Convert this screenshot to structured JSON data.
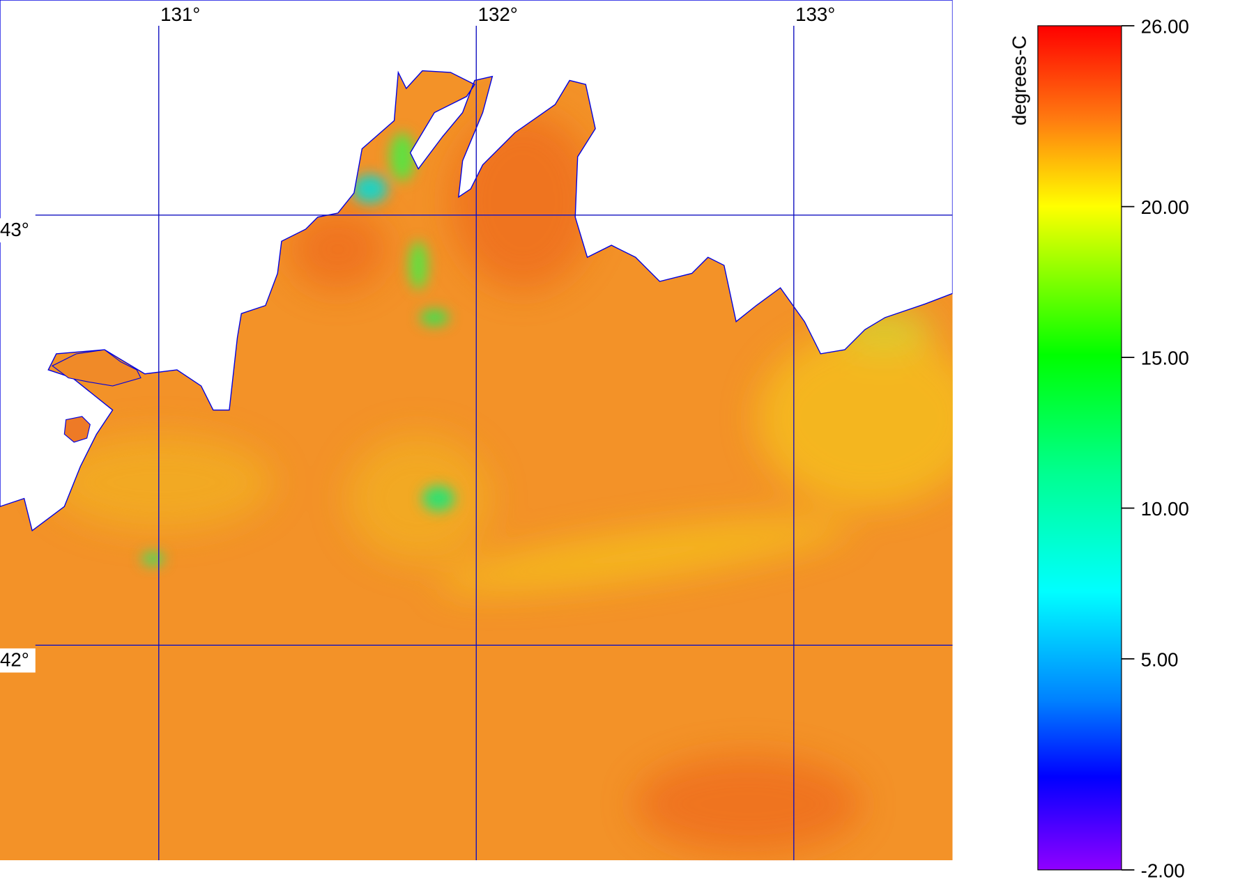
{
  "chart_data": {
    "type": "heatmap",
    "colorbar_label": "degrees-C",
    "xlim": [
      130.5,
      133.5
    ],
    "ylim": [
      41.5,
      43.5
    ],
    "xticks": [
      {
        "value": 131,
        "label": "131°"
      },
      {
        "value": 132,
        "label": "132°"
      },
      {
        "value": 133,
        "label": "133°"
      }
    ],
    "yticks": [
      {
        "value": 43,
        "label": "43°"
      },
      {
        "value": 42,
        "label": "42°"
      }
    ],
    "clim": [
      -2,
      26
    ],
    "cticks": [
      {
        "value": 26,
        "label": "26.00"
      },
      {
        "value": 20,
        "label": "20.00"
      },
      {
        "value": 15,
        "label": "15.00"
      },
      {
        "value": 10,
        "label": "10.00"
      },
      {
        "value": 5,
        "label": "5.00"
      },
      {
        "value": -2,
        "label": "-2.00"
      }
    ],
    "grid": true
  }
}
